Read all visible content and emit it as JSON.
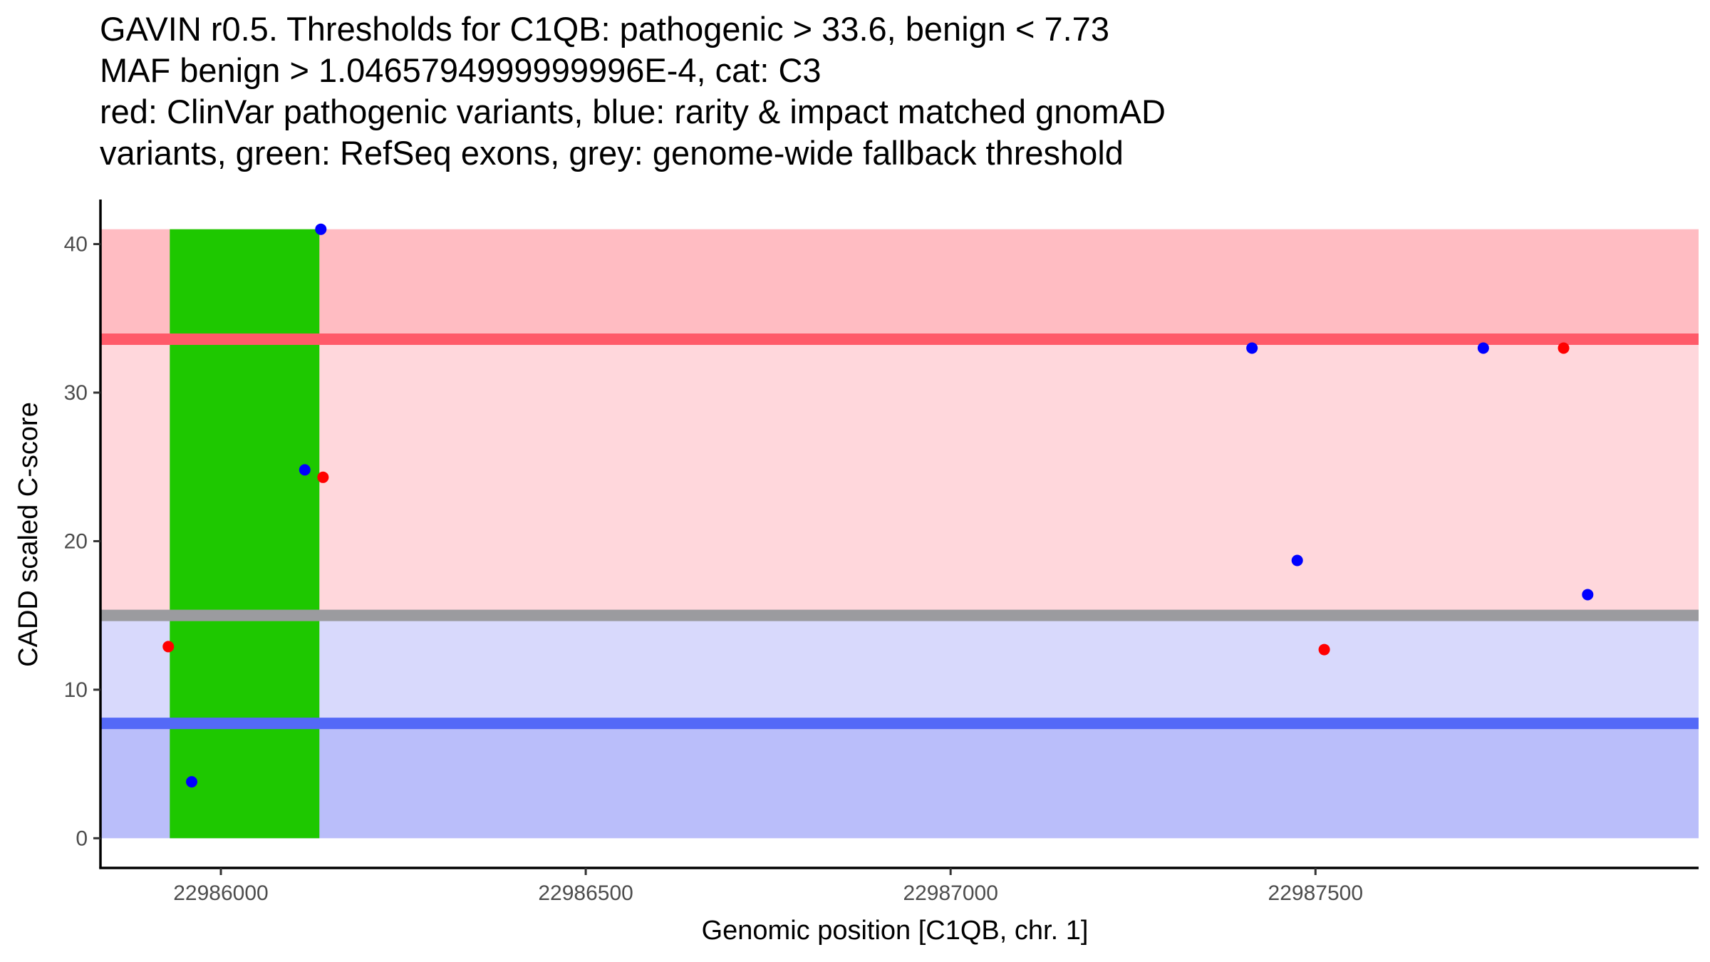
{
  "chart_data": {
    "type": "scatter",
    "title_lines": [
      "GAVIN r0.5. Thresholds for C1QB: pathogenic > 33.6, benign < 7.73",
      "MAF benign > 1.0465794999999996E-4, cat: C3",
      "red: ClinVar pathogenic variants, blue: rarity & impact matched gnomAD",
      "variants, green: RefSeq exons, grey: genome-wide fallback threshold"
    ],
    "xlabel": "Genomic position [C1QB, chr. 1]",
    "ylabel": "CADD scaled C-score",
    "xlim": [
      22985835,
      22988025
    ],
    "ylim": [
      -2,
      43
    ],
    "x_ticks": [
      22986000,
      22986500,
      22987000,
      22987500
    ],
    "x_tick_labels": [
      "22986000",
      "22986500",
      "22987000",
      "22987500"
    ],
    "y_ticks": [
      0,
      10,
      20,
      30,
      40
    ],
    "y_tick_labels": [
      "0",
      "10",
      "20",
      "30",
      "40"
    ],
    "regions": [
      {
        "name": "above-pathogenic",
        "y0": 33.6,
        "y1": 41,
        "color": "#ffbcc2"
      },
      {
        "name": "pathogenic-to-fallback",
        "y0": 15,
        "y1": 33.6,
        "color": "#ffd7dc"
      },
      {
        "name": "fallback-to-benign",
        "y0": 7.73,
        "y1": 15,
        "color": "#d8d9fc"
      },
      {
        "name": "below-benign",
        "y0": 0,
        "y1": 7.73,
        "color": "#babefa"
      }
    ],
    "threshold_lines": [
      {
        "name": "pathogenic-threshold",
        "y": 33.6,
        "color": "#ff5a69"
      },
      {
        "name": "fallback-threshold",
        "y": 15,
        "color": "#9b9b9f"
      },
      {
        "name": "benign-threshold",
        "y": 7.73,
        "color": "#5469f7"
      }
    ],
    "exons": [
      {
        "x0": 22985930,
        "x1": 22986135,
        "y0": 0,
        "y1": 41,
        "color": "#1ec800"
      }
    ],
    "series": [
      {
        "name": "ClinVar pathogenic variants",
        "color": "#ff0000",
        "points": [
          {
            "x": 22985928,
            "y": 12.9
          },
          {
            "x": 22986140,
            "y": 24.3
          },
          {
            "x": 22987512,
            "y": 12.7
          },
          {
            "x": 22987840,
            "y": 33
          }
        ]
      },
      {
        "name": "rarity & impact matched gnomAD variants",
        "color": "#0000ff",
        "points": [
          {
            "x": 22985960,
            "y": 3.8
          },
          {
            "x": 22986115,
            "y": 24.8
          },
          {
            "x": 22986137,
            "y": 41
          },
          {
            "x": 22987413,
            "y": 33
          },
          {
            "x": 22987475,
            "y": 18.7
          },
          {
            "x": 22987730,
            "y": 33
          },
          {
            "x": 22987873,
            "y": 16.4
          }
        ]
      }
    ]
  }
}
